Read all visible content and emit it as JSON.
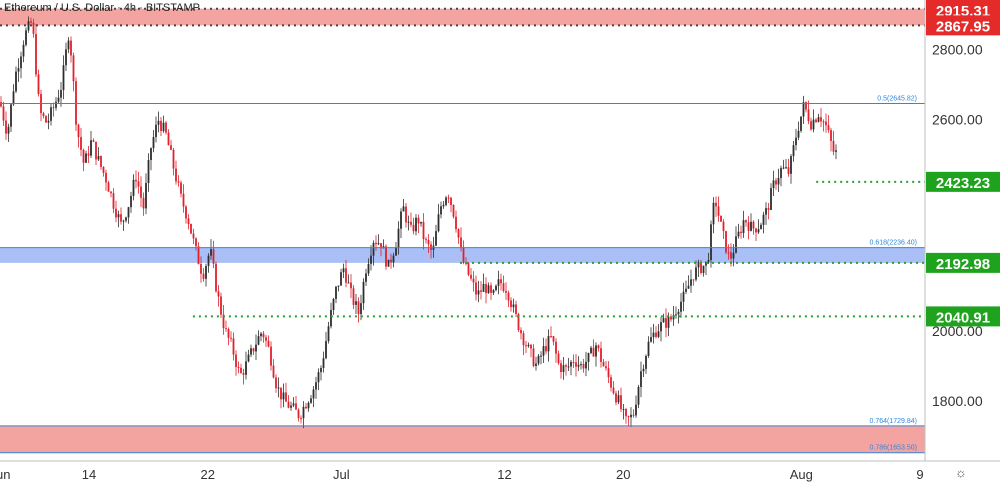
{
  "header": {
    "symbol": "Ethereum / U.S. Dollar",
    "interval": "4h",
    "exchange": "BITSTAMP",
    "text": "Ethereum / U.S. Dollar · 4h · BITSTAMP"
  },
  "settings_icon": "gear-icon",
  "colors": {
    "up": "#2e2e2e",
    "down": "#e0202b",
    "zone_red": "#f4a4a0",
    "zone_blue": "#a9bff5",
    "fib_line": "#2f87e0",
    "support_dotted": "#2aa02a",
    "label_green": "#1fa31f",
    "label_red": "#e52a2a"
  },
  "chart_data": {
    "type": "candlestick",
    "title": "Ethereum / U.S. Dollar · 4h · BITSTAMP",
    "xlabel": "",
    "ylabel": "",
    "ylim": [
      1630,
      2940
    ],
    "xlim": [
      "2021-06-08T00:00",
      "2021-08-09T08:00"
    ],
    "grid": false,
    "x_ticks": [
      {
        "label": "Jun",
        "date": "2021-06-08"
      },
      {
        "label": "14",
        "date": "2021-06-14"
      },
      {
        "label": "22",
        "date": "2021-06-22"
      },
      {
        "label": "Jul",
        "date": "2021-07-01"
      },
      {
        "label": "12",
        "date": "2021-07-12"
      },
      {
        "label": "20",
        "date": "2021-07-20"
      },
      {
        "label": "Aug",
        "date": "2021-08-01"
      },
      {
        "label": "9",
        "date": "2021-08-09"
      }
    ],
    "y_ticks": [
      {
        "label": "2800.00",
        "value": 2800
      },
      {
        "label": "2600.00",
        "value": 2600
      },
      {
        "label": "2000.00",
        "value": 2000
      },
      {
        "label": "1800.00",
        "value": 1800
      }
    ],
    "zones": [
      {
        "low": 2867.95,
        "high": 2915.31,
        "color": "red"
      },
      {
        "low": 2192.98,
        "high": 2236.4,
        "color": "blue"
      },
      {
        "low": 1653.5,
        "high": 1729.84,
        "color": "red"
      }
    ],
    "fib_levels": [
      {
        "label": "0.5(2645.82)",
        "value": 2645.82
      },
      {
        "label": "0.618(2236.40)",
        "value": 2236.4
      },
      {
        "label": "0.764(1729.84)",
        "value": 1729.84
      },
      {
        "label": "0.786(1653.50)",
        "value": 1653.5
      }
    ],
    "dotted_levels": [
      {
        "value": 2915.31,
        "color": "dark",
        "from": "2021-06-08"
      },
      {
        "value": 2867.95,
        "color": "dark",
        "from": "2021-06-08"
      },
      {
        "value": 2423.23,
        "color": "green",
        "from": "2021-08-02"
      },
      {
        "value": 2192.98,
        "color": "green",
        "from": "2021-07-09"
      },
      {
        "value": 2040.91,
        "color": "green",
        "from": "2021-06-21"
      }
    ],
    "price_labels": [
      {
        "label": "2915.31",
        "value": 2915.31,
        "color": "red"
      },
      {
        "label": "2867.95",
        "value": 2867.95,
        "color": "red"
      },
      {
        "label": "2423.23",
        "value": 2423.23,
        "color": "green"
      },
      {
        "label": "2192.98",
        "value": 2192.98,
        "color": "green"
      },
      {
        "label": "2040.91",
        "value": 2040.91,
        "color": "green"
      }
    ],
    "price_path": [
      [
        "2021-06-08T00:00",
        2650
      ],
      [
        "2021-06-08T12:00",
        2560
      ],
      [
        "2021-06-09T00:00",
        2720
      ],
      [
        "2021-06-09T16:00",
        2840
      ],
      [
        "2021-06-10T04:00",
        2880
      ],
      [
        "2021-06-10T16:00",
        2620
      ],
      [
        "2021-06-11T04:00",
        2590
      ],
      [
        "2021-06-11T16:00",
        2640
      ],
      [
        "2021-06-12T04:00",
        2700
      ],
      [
        "2021-06-12T16:00",
        2860
      ],
      [
        "2021-06-13T04:00",
        2580
      ],
      [
        "2021-06-13T16:00",
        2470
      ],
      [
        "2021-06-14T04:00",
        2540
      ],
      [
        "2021-06-14T16:00",
        2480
      ],
      [
        "2021-06-15T04:00",
        2430
      ],
      [
        "2021-06-15T16:00",
        2360
      ],
      [
        "2021-06-16T04:00",
        2300
      ],
      [
        "2021-06-16T16:00",
        2360
      ],
      [
        "2021-06-17T04:00",
        2440
      ],
      [
        "2021-06-17T16:00",
        2350
      ],
      [
        "2021-06-18T04:00",
        2520
      ],
      [
        "2021-06-18T16:00",
        2600
      ],
      [
        "2021-06-19T04:00",
        2560
      ],
      [
        "2021-06-19T16:00",
        2470
      ],
      [
        "2021-06-20T04:00",
        2380
      ],
      [
        "2021-06-20T16:00",
        2320
      ],
      [
        "2021-06-21T04:00",
        2230
      ],
      [
        "2021-06-21T16:00",
        2160
      ],
      [
        "2021-06-22T04:00",
        2230
      ],
      [
        "2021-06-22T16:00",
        2100
      ],
      [
        "2021-06-23T04:00",
        2000
      ],
      [
        "2021-06-23T16:00",
        1950
      ],
      [
        "2021-06-24T04:00",
        1870
      ],
      [
        "2021-06-24T16:00",
        1910
      ],
      [
        "2021-06-25T04:00",
        1960
      ],
      [
        "2021-06-25T16:00",
        2000
      ],
      [
        "2021-06-26T04:00",
        1940
      ],
      [
        "2021-06-26T16:00",
        1840
      ],
      [
        "2021-06-27T04:00",
        1800
      ],
      [
        "2021-06-27T16:00",
        1780
      ],
      [
        "2021-06-28T04:00",
        1760
      ],
      [
        "2021-06-28T16:00",
        1800
      ],
      [
        "2021-06-29T04:00",
        1840
      ],
      [
        "2021-06-29T16:00",
        1900
      ],
      [
        "2021-06-30T04:00",
        2020
      ],
      [
        "2021-06-30T16:00",
        2120
      ],
      [
        "2021-07-01T04:00",
        2180
      ],
      [
        "2021-07-01T16:00",
        2100
      ],
      [
        "2021-07-02T04:00",
        2050
      ],
      [
        "2021-07-02T16:00",
        2180
      ],
      [
        "2021-07-03T04:00",
        2260
      ],
      [
        "2021-07-03T16:00",
        2250
      ],
      [
        "2021-07-04T04:00",
        2180
      ],
      [
        "2021-07-04T16:00",
        2250
      ],
      [
        "2021-07-05T04:00",
        2350
      ],
      [
        "2021-07-05T16:00",
        2280
      ],
      [
        "2021-07-06T04:00",
        2320
      ],
      [
        "2021-07-06T16:00",
        2250
      ],
      [
        "2021-07-07T04:00",
        2220
      ],
      [
        "2021-07-07T16:00",
        2350
      ],
      [
        "2021-07-08T04:00",
        2400
      ],
      [
        "2021-07-08T16:00",
        2320
      ],
      [
        "2021-07-09T04:00",
        2200
      ],
      [
        "2021-07-09T16:00",
        2150
      ],
      [
        "2021-07-10T04:00",
        2100
      ],
      [
        "2021-07-10T16:00",
        2130
      ],
      [
        "2021-07-11T04:00",
        2090
      ],
      [
        "2021-07-11T16:00",
        2140
      ],
      [
        "2021-07-12T04:00",
        2120
      ],
      [
        "2021-07-12T16:00",
        2050
      ],
      [
        "2021-07-13T04:00",
        1990
      ],
      [
        "2021-07-13T16:00",
        1940
      ],
      [
        "2021-07-14T04:00",
        1900
      ],
      [
        "2021-07-14T16:00",
        1950
      ],
      [
        "2021-07-15T04:00",
        1980
      ],
      [
        "2021-07-15T16:00",
        1900
      ],
      [
        "2021-07-16T04:00",
        1890
      ],
      [
        "2021-07-16T16:00",
        1920
      ],
      [
        "2021-07-17T04:00",
        1900
      ],
      [
        "2021-07-17T16:00",
        1920
      ],
      [
        "2021-07-18T04:00",
        1960
      ],
      [
        "2021-07-18T16:00",
        1900
      ],
      [
        "2021-07-19T04:00",
        1850
      ],
      [
        "2021-07-19T16:00",
        1800
      ],
      [
        "2021-07-20T04:00",
        1740
      ],
      [
        "2021-07-20T16:00",
        1760
      ],
      [
        "2021-07-21T04:00",
        1880
      ],
      [
        "2021-07-21T16:00",
        1960
      ],
      [
        "2021-07-22T04:00",
        2000
      ],
      [
        "2021-07-22T16:00",
        2020
      ],
      [
        "2021-07-23T04:00",
        2030
      ],
      [
        "2021-07-23T16:00",
        2070
      ],
      [
        "2021-07-24T04:00",
        2100
      ],
      [
        "2021-07-24T16:00",
        2160
      ],
      [
        "2021-07-25T04:00",
        2180
      ],
      [
        "2021-07-25T16:00",
        2190
      ],
      [
        "2021-07-26T04:00",
        2380
      ],
      [
        "2021-07-26T16:00",
        2280
      ],
      [
        "2021-07-27T04:00",
        2200
      ],
      [
        "2021-07-27T16:00",
        2260
      ],
      [
        "2021-07-28T04:00",
        2320
      ],
      [
        "2021-07-28T16:00",
        2290
      ],
      [
        "2021-07-29T04:00",
        2300
      ],
      [
        "2021-07-29T16:00",
        2340
      ],
      [
        "2021-07-30T04:00",
        2420
      ],
      [
        "2021-07-30T16:00",
        2460
      ],
      [
        "2021-07-31T04:00",
        2450
      ],
      [
        "2021-07-31T16:00",
        2560
      ],
      [
        "2021-08-01T04:00",
        2640
      ],
      [
        "2021-08-01T16:00",
        2590
      ],
      [
        "2021-08-02T04:00",
        2620
      ],
      [
        "2021-08-02T16:00",
        2580
      ],
      [
        "2021-08-03T04:00",
        2510
      ],
      [
        "2021-08-03T12:00",
        2500
      ]
    ]
  }
}
